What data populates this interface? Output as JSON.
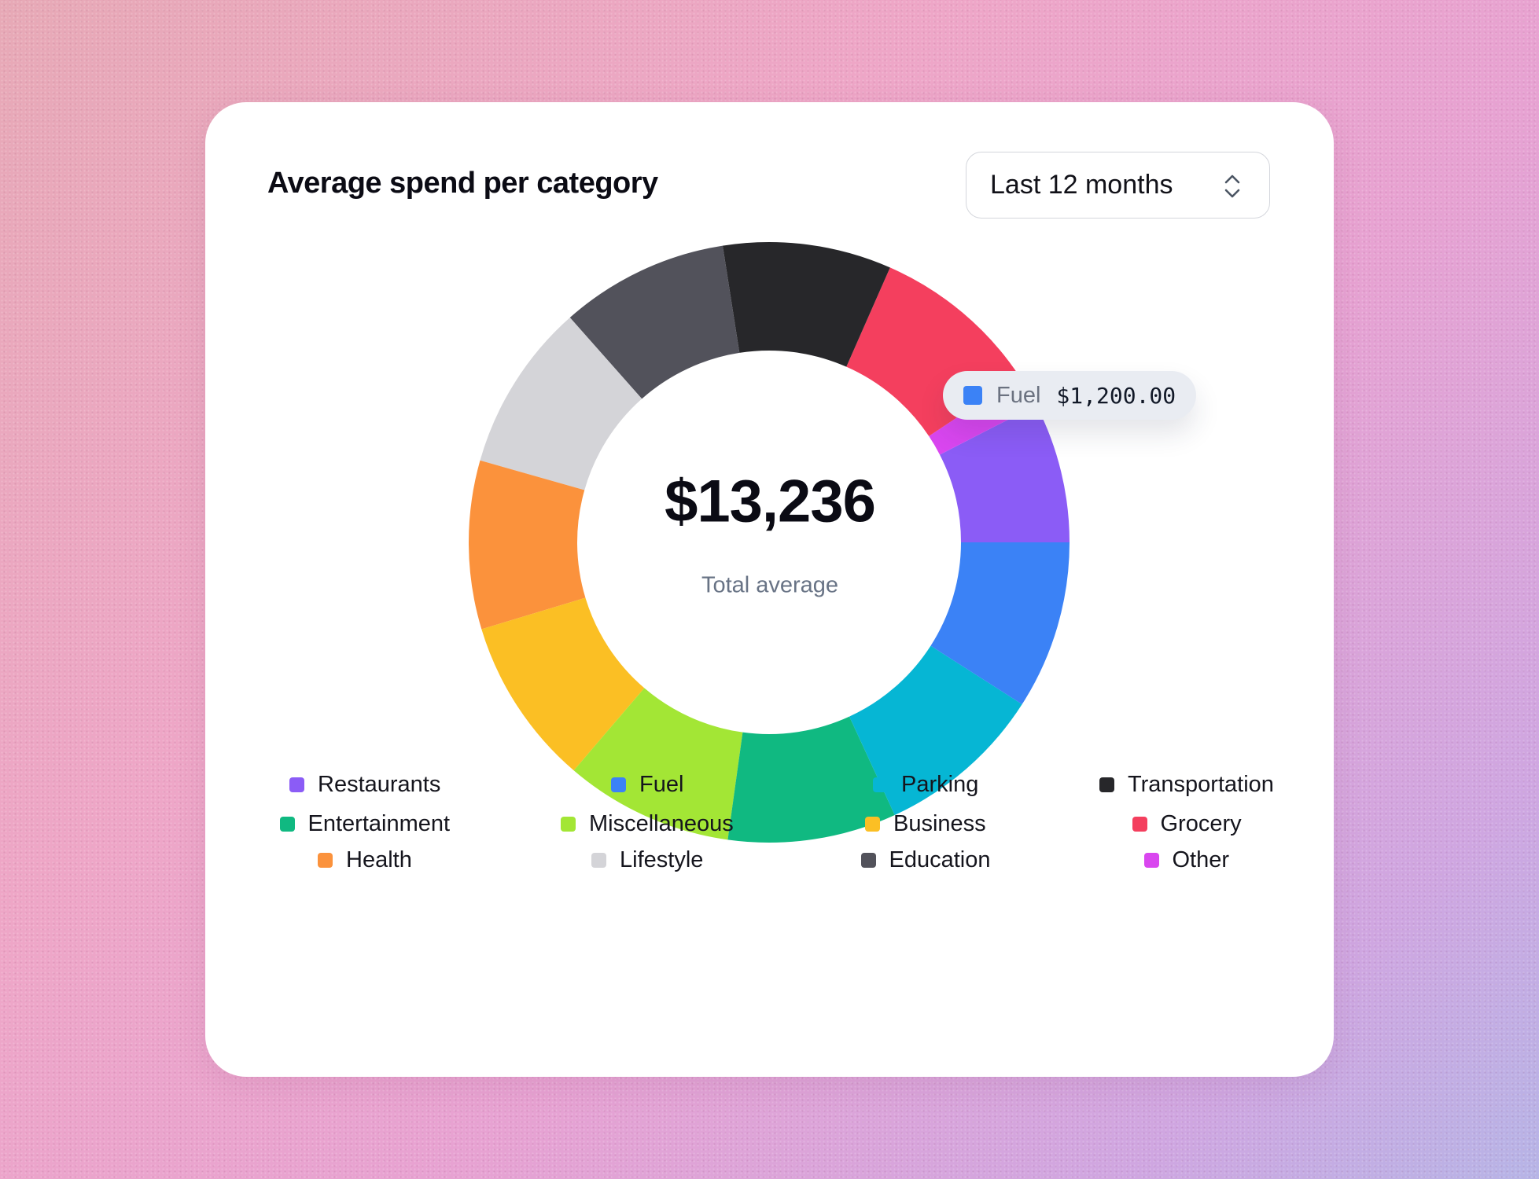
{
  "card": {
    "title": "Average spend per category"
  },
  "period_select": {
    "value": "Last 12 months",
    "icon": "chevron-up-down-icon"
  },
  "chart_data": {
    "type": "donut",
    "title": "Average spend per category",
    "total_value": "$13,236",
    "total_caption": "Total average",
    "legend_placement": "bottom",
    "slices": [
      {
        "name": "Restaurants",
        "value": 1000,
        "color": "#8b5cf6"
      },
      {
        "name": "Other",
        "value": 236,
        "color": "#d946ef"
      },
      {
        "name": "Grocery",
        "value": 1200,
        "color": "#f43f5e"
      },
      {
        "name": "Transportation",
        "value": 1200,
        "color": "#27272a"
      },
      {
        "name": "Education",
        "value": 1200,
        "color": "#52525b"
      },
      {
        "name": "Lifestyle",
        "value": 1200,
        "color": "#d4d4d8"
      },
      {
        "name": "Health",
        "value": 1200,
        "color": "#fb923c"
      },
      {
        "name": "Business",
        "value": 1200,
        "color": "#fbbf24"
      },
      {
        "name": "Miscellaneous",
        "value": 1200,
        "color": "#a3e635"
      },
      {
        "name": "Entertainment",
        "value": 1200,
        "color": "#10b981"
      },
      {
        "name": "Parking",
        "value": 1200,
        "color": "#06b6d4"
      },
      {
        "name": "Fuel",
        "value": 1200,
        "color": "#3b82f6"
      }
    ],
    "tooltip": {
      "name": "Fuel",
      "amount": "$1,200.00",
      "color": "#3b82f6"
    }
  },
  "legend": [
    {
      "label": "Restaurants",
      "color": "#8b5cf6"
    },
    {
      "label": "Fuel",
      "color": "#3b82f6"
    },
    {
      "label": "Parking",
      "color": "#06b6d4"
    },
    {
      "label": "Transportation",
      "color": "#27272a"
    },
    {
      "label": "Entertainment",
      "color": "#10b981"
    },
    {
      "label": "Miscellaneous",
      "color": "#a3e635"
    },
    {
      "label": "Business",
      "color": "#fbbf24"
    },
    {
      "label": "Grocery",
      "color": "#f43f5e"
    },
    {
      "label": "Health",
      "color": "#fb923c"
    },
    {
      "label": "Lifestyle",
      "color": "#d4d4d8"
    },
    {
      "label": "Education",
      "color": "#52525b"
    },
    {
      "label": "Other",
      "color": "#d946ef"
    }
  ]
}
